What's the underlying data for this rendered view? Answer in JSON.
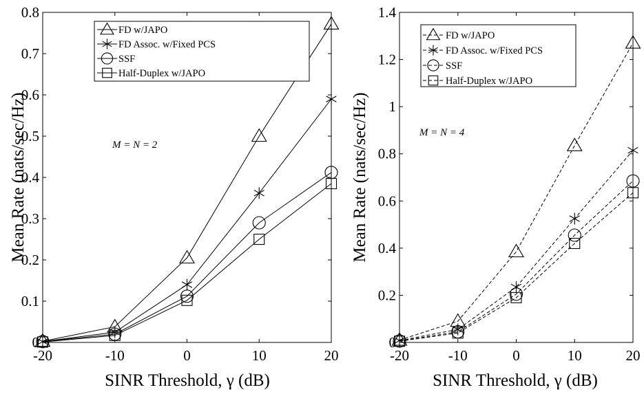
{
  "chart_data": [
    {
      "type": "line",
      "xlabel": "SINR Threshold, γ (dB)",
      "ylabel": "Mean Rate (nats/sec/Hz)",
      "annotation": "M = N = 2",
      "x": [
        -20,
        -10,
        0,
        10,
        20
      ],
      "xlim": [
        -20,
        20
      ],
      "ylim": [
        0,
        0.8
      ],
      "xticks": [
        "-20",
        "-10",
        "0",
        "10",
        "20"
      ],
      "yticks": [
        "0",
        "0.1",
        "0.2",
        "0.3",
        "0.4",
        "0.5",
        "0.6",
        "0.7",
        "0.8"
      ],
      "yticks_values": [
        0,
        0.1,
        0.2,
        0.3,
        0.4,
        0.5,
        0.6,
        0.7,
        0.8
      ],
      "line_style": "solid",
      "grid": false,
      "legend_position": "top-right",
      "series": [
        {
          "name": "FD w/JAPO",
          "marker": "triangle",
          "values": [
            0.003,
            0.038,
            0.205,
            0.5,
            0.772
          ]
        },
        {
          "name": "FD Assoc. w/Fixed PCS",
          "marker": "asterisk",
          "values": [
            0.002,
            0.025,
            0.14,
            0.362,
            0.59
          ]
        },
        {
          "name": "SSF",
          "marker": "circle",
          "values": [
            0.002,
            0.02,
            0.112,
            0.29,
            0.412
          ]
        },
        {
          "name": "Half-Duplex w/JAPO",
          "marker": "square",
          "values": [
            0.001,
            0.017,
            0.102,
            0.25,
            0.385
          ]
        }
      ]
    },
    {
      "type": "line",
      "xlabel": "SINR Threshold, γ (dB)",
      "ylabel": "Mean Rate (nats/sec/Hz)",
      "annotation": "M = N = 4",
      "x": [
        -20,
        -10,
        0,
        10,
        20
      ],
      "xlim": [
        -20,
        20
      ],
      "ylim": [
        0,
        1.4
      ],
      "xticks": [
        "-20",
        "-10",
        "0",
        "10",
        "20"
      ],
      "yticks": [
        "0",
        "0.2",
        "0.4",
        "0.6",
        "0.8",
        "1",
        "1.2",
        "1.4"
      ],
      "yticks_values": [
        0,
        0.2,
        0.4,
        0.6,
        0.8,
        1.0,
        1.2,
        1.4
      ],
      "line_style": "dashed",
      "grid": false,
      "legend_position": "top-left",
      "series": [
        {
          "name": "FD w/JAPO",
          "marker": "triangle",
          "values": [
            0.01,
            0.09,
            0.385,
            0.835,
            1.27
          ]
        },
        {
          "name": "FD Assoc. w/Fixed PCS",
          "marker": "asterisk",
          "values": [
            0.008,
            0.055,
            0.235,
            0.525,
            0.815
          ]
        },
        {
          "name": "SSF",
          "marker": "circle",
          "values": [
            0.006,
            0.045,
            0.205,
            0.455,
            0.685
          ]
        },
        {
          "name": "Half-Duplex w/JAPO",
          "marker": "square",
          "values": [
            0.005,
            0.04,
            0.19,
            0.42,
            0.635
          ]
        }
      ]
    }
  ]
}
